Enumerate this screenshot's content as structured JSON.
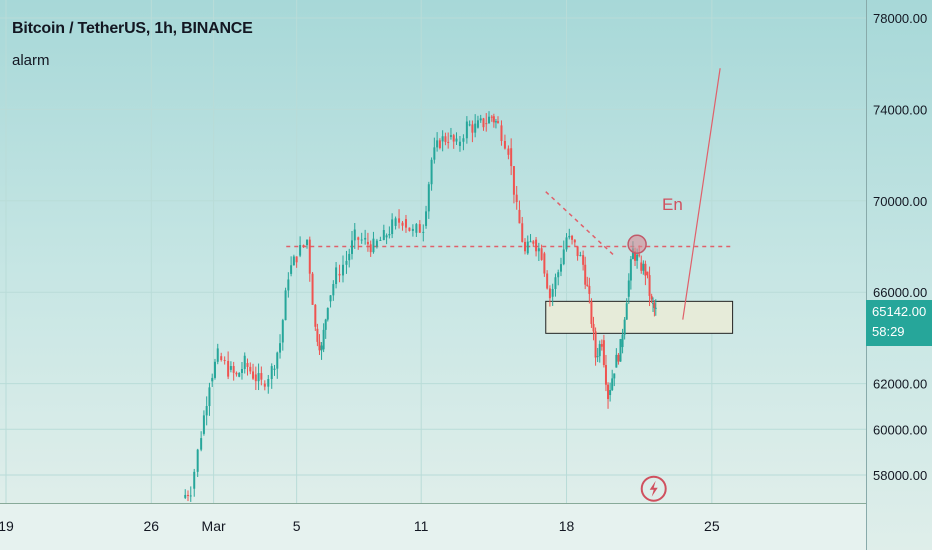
{
  "header": {
    "title": "Bitcoin / TetherUS, 1h, BINANCE",
    "subtitle": "alarm"
  },
  "price_tag": {
    "price": "65142.00",
    "countdown": "58:29",
    "color": "#26a69a"
  },
  "annotation_label": "En",
  "colors": {
    "up": "#26a69a",
    "down": "#ef5350",
    "drawing": "#e0606a",
    "zone_fill": "#e6ebd9",
    "zone_border": "#222222"
  },
  "icons": {
    "alert": "flash-alert-icon"
  },
  "chart_data": {
    "type": "candlestick",
    "ylim": [
      56000,
      78000
    ],
    "y_ticks": [
      {
        "value": 78000,
        "label": "78000.00"
      },
      {
        "value": 74000,
        "label": "74000.00"
      },
      {
        "value": 70000,
        "label": "70000.00"
      },
      {
        "value": 66000,
        "label": "66000.00"
      },
      {
        "value": 62000,
        "label": "62000.00"
      },
      {
        "value": 60000,
        "label": "60000.00"
      },
      {
        "value": 58000,
        "label": "58000.00"
      }
    ],
    "x_ticks": [
      {
        "t": 19,
        "label": "19"
      },
      {
        "t": 26,
        "label": "26"
      },
      {
        "t": 29,
        "label": "Mar"
      },
      {
        "t": 33,
        "label": "5"
      },
      {
        "t": 39,
        "label": "11"
      },
      {
        "t": 46,
        "label": "18"
      },
      {
        "t": 53,
        "label": "25"
      }
    ],
    "series": [
      {
        "t": 27.5,
        "close": 57000
      },
      {
        "t": 27.9,
        "close": 57400
      },
      {
        "t": 28.4,
        "close": 59800
      },
      {
        "t": 28.8,
        "close": 62100
      },
      {
        "t": 29.2,
        "close": 63200
      },
      {
        "t": 29.7,
        "close": 62600
      },
      {
        "t": 30.1,
        "close": 62300
      },
      {
        "t": 30.5,
        "close": 62900
      },
      {
        "t": 30.9,
        "close": 62400
      },
      {
        "t": 31.3,
        "close": 62000
      },
      {
        "t": 31.8,
        "close": 62600
      },
      {
        "t": 32.2,
        "close": 63800
      },
      {
        "t": 32.6,
        "close": 66800
      },
      {
        "t": 33.0,
        "close": 67600
      },
      {
        "t": 33.5,
        "close": 68300
      },
      {
        "t": 33.9,
        "close": 64400
      },
      {
        "t": 34.2,
        "close": 63500
      },
      {
        "t": 34.5,
        "close": 65600
      },
      {
        "t": 34.9,
        "close": 66800
      },
      {
        "t": 35.4,
        "close": 67400
      },
      {
        "t": 35.8,
        "close": 68400
      },
      {
        "t": 36.3,
        "close": 68200
      },
      {
        "t": 36.7,
        "close": 68000
      },
      {
        "t": 37.2,
        "close": 68400
      },
      {
        "t": 37.6,
        "close": 68900
      },
      {
        "t": 38.1,
        "close": 69200
      },
      {
        "t": 38.6,
        "close": 68600
      },
      {
        "t": 39.1,
        "close": 68900
      },
      {
        "t": 39.5,
        "close": 71800
      },
      {
        "t": 39.9,
        "close": 72600
      },
      {
        "t": 40.3,
        "close": 72800
      },
      {
        "t": 40.7,
        "close": 72400
      },
      {
        "t": 41.2,
        "close": 73300
      },
      {
        "t": 41.6,
        "close": 73200
      },
      {
        "t": 42.0,
        "close": 73400
      },
      {
        "t": 42.4,
        "close": 73700
      },
      {
        "t": 42.7,
        "close": 73300
      },
      {
        "t": 43.2,
        "close": 72300
      },
      {
        "t": 43.6,
        "close": 69600
      },
      {
        "t": 44.0,
        "close": 67700
      },
      {
        "t": 44.4,
        "close": 68300
      },
      {
        "t": 44.8,
        "close": 67700
      },
      {
        "t": 45.2,
        "close": 65800
      },
      {
        "t": 45.6,
        "close": 66900
      },
      {
        "t": 46.0,
        "close": 68400
      },
      {
        "t": 46.4,
        "close": 68000
      },
      {
        "t": 46.8,
        "close": 67200
      },
      {
        "t": 47.1,
        "close": 65600
      },
      {
        "t": 47.4,
        "close": 63200
      },
      {
        "t": 47.7,
        "close": 63900
      },
      {
        "t": 48.0,
        "close": 61500
      },
      {
        "t": 48.3,
        "close": 62700
      },
      {
        "t": 48.6,
        "close": 63600
      },
      {
        "t": 48.9,
        "close": 65800
      },
      {
        "t": 49.2,
        "close": 67800
      },
      {
        "t": 49.5,
        "close": 67300
      },
      {
        "t": 49.8,
        "close": 66900
      },
      {
        "t": 50.1,
        "close": 65500
      },
      {
        "t": 50.3,
        "close": 65142
      }
    ]
  },
  "drawings": {
    "zone": {
      "t_start": 45.0,
      "t_end": 54.0,
      "p_low": 64200,
      "p_high": 65600
    },
    "horizontal_level": {
      "t_start": 32.5,
      "t_end": 54.0,
      "p": 68000
    },
    "trendline": {
      "t1": 45.0,
      "p1": 70400,
      "t2": 48.3,
      "p2": 67600
    },
    "projection": {
      "t1": 51.6,
      "p1": 64800,
      "t2": 53.4,
      "p2": 75800
    },
    "marker": {
      "t": 49.4,
      "p": 68100
    },
    "label_pos": {
      "t": 50.6,
      "p": 69600
    },
    "alert_icon_pos": {
      "t": 50.2,
      "p": 57400
    }
  }
}
